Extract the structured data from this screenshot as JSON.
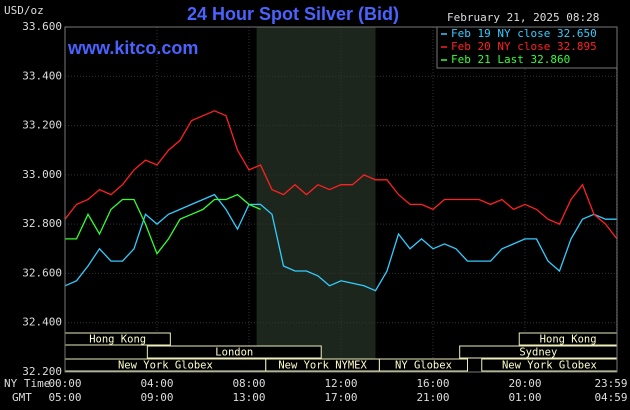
{
  "chart_data": {
    "type": "line",
    "title": "24 Hour Spot Silver (Bid)",
    "y_label": "USD/oz",
    "timestamp": "February 21, 2025 08:28",
    "watermark": "www.kitco.com",
    "x_label_ny": "NY Time",
    "x_label_gmt": "GMT",
    "xlim": [
      0,
      24
    ],
    "ylim": [
      32.2,
      33.6
    ],
    "xticks": [
      {
        "value": 0,
        "label": "00:00"
      },
      {
        "value": 4,
        "label": "04:00"
      },
      {
        "value": 8,
        "label": "08:00"
      },
      {
        "value": 12,
        "label": "12:00"
      },
      {
        "value": 16,
        "label": "16:00"
      },
      {
        "value": 20,
        "label": "20:00"
      },
      {
        "value": 23.983,
        "label": "23:59"
      }
    ],
    "gmt_labels": [
      "05:00",
      "09:00",
      "13:00",
      "17:00",
      "21:00",
      "01:00",
      "04:59"
    ],
    "yticks": [
      {
        "value": 32.2,
        "label": "32.200"
      },
      {
        "value": 32.4,
        "label": "32.400"
      },
      {
        "value": 32.6,
        "label": "32.600"
      },
      {
        "value": 32.8,
        "label": "32.800"
      },
      {
        "value": 33.0,
        "label": "33.000"
      },
      {
        "value": 33.2,
        "label": "33.200"
      },
      {
        "value": 33.4,
        "label": "33.400"
      },
      {
        "value": 33.6,
        "label": "33.600"
      }
    ],
    "grid": true,
    "shaded_range": [
      8.33,
      13.5
    ],
    "sessions": [
      {
        "label": "Hong Kong",
        "start": 0,
        "end": 4.58,
        "row": 0
      },
      {
        "label": "Hong Kong",
        "start": 19.75,
        "end": 24,
        "row": 0
      },
      {
        "label": "London",
        "start": 3.58,
        "end": 11.14,
        "row": 1
      },
      {
        "label": "Sydney",
        "start": 17.16,
        "end": 24,
        "row": 1
      },
      {
        "label": "New York Globex",
        "start": 0,
        "end": 8.73,
        "row": 2
      },
      {
        "label": "New York NYMEX",
        "start": 8.73,
        "end": 13.67,
        "row": 2
      },
      {
        "label": "NY Globex",
        "start": 13.67,
        "end": 17.5,
        "row": 2
      },
      {
        "label": "New York Globex",
        "start": 18.12,
        "end": 24,
        "row": 2
      }
    ],
    "x": [
      0,
      0.5,
      1,
      1.5,
      2,
      2.5,
      3,
      3.5,
      4,
      4.5,
      5,
      5.5,
      6,
      6.5,
      7,
      7.5,
      8,
      8.5,
      9,
      9.5,
      10,
      10.5,
      11,
      11.5,
      12,
      12.5,
      13,
      13.5,
      14,
      14.5,
      15,
      15.5,
      16,
      16.5,
      17,
      17.5,
      18,
      18.5,
      19,
      19.5,
      20,
      20.5,
      21,
      21.5,
      22,
      22.5,
      23,
      23.5,
      24
    ],
    "series": [
      {
        "name": "Feb 19 NY close 32.650",
        "color": "#33ccff",
        "values": [
          32.55,
          32.57,
          32.63,
          32.7,
          32.65,
          32.65,
          32.7,
          32.84,
          32.8,
          32.84,
          32.86,
          32.88,
          32.9,
          32.92,
          32.86,
          32.78,
          32.88,
          32.88,
          32.84,
          32.63,
          32.61,
          32.61,
          32.59,
          32.55,
          32.57,
          32.56,
          32.55,
          32.53,
          32.61,
          32.76,
          32.7,
          32.74,
          32.7,
          32.72,
          32.7,
          32.65,
          32.65,
          32.65,
          32.7,
          32.72,
          32.74,
          32.74,
          32.65,
          32.61,
          32.74,
          32.82,
          32.84,
          32.82,
          32.82
        ]
      },
      {
        "name": "Feb 20 NY close 32.895",
        "color": "#ff2020",
        "values": [
          32.82,
          32.88,
          32.9,
          32.94,
          32.92,
          32.96,
          33.02,
          33.06,
          33.04,
          33.1,
          33.14,
          33.22,
          33.24,
          33.26,
          33.24,
          33.1,
          33.02,
          33.04,
          32.94,
          32.92,
          32.96,
          32.92,
          32.96,
          32.94,
          32.96,
          32.96,
          33.0,
          32.98,
          32.98,
          32.92,
          32.88,
          32.88,
          32.86,
          32.9,
          32.9,
          32.9,
          32.9,
          32.88,
          32.9,
          32.86,
          32.88,
          32.86,
          32.82,
          32.8,
          32.9,
          32.96,
          32.84,
          32.8,
          32.74
        ]
      },
      {
        "name": "Feb 21 Last 32.860",
        "color": "#33ff33",
        "values": [
          32.74,
          32.74,
          32.84,
          32.76,
          32.86,
          32.9,
          32.9,
          32.8,
          32.68,
          32.74,
          32.82,
          32.84,
          32.86,
          32.9,
          32.9,
          32.92,
          32.88,
          32.86,
          null,
          null,
          null,
          null,
          null,
          null,
          null,
          null,
          null,
          null,
          null,
          null,
          null,
          null,
          null,
          null,
          null,
          null,
          null,
          null,
          null,
          null,
          null,
          null,
          null,
          null,
          null,
          null,
          null,
          null,
          null
        ]
      }
    ]
  }
}
